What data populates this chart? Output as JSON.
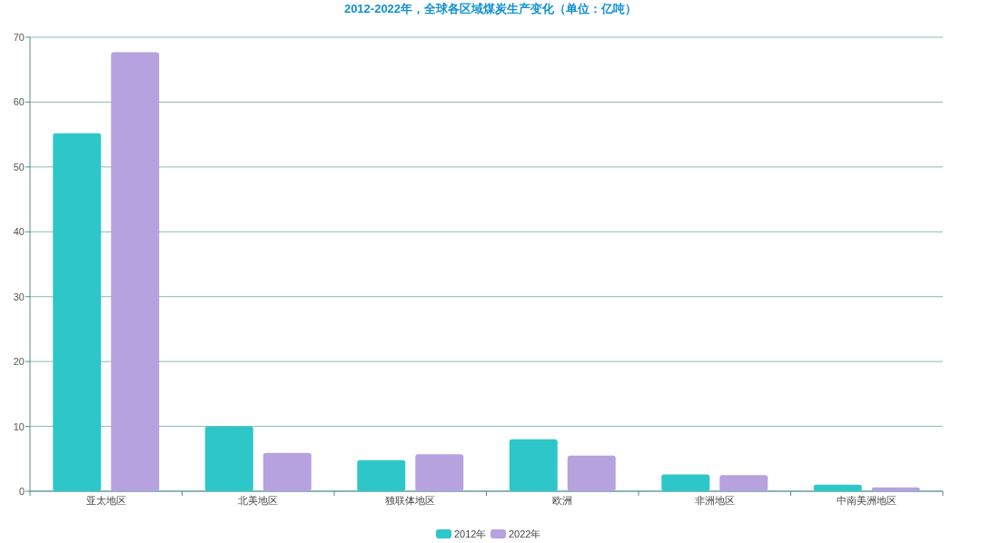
{
  "chart_data": {
    "type": "bar",
    "title": "2012-2022年，全球各区域煤炭生产变化（单位：亿吨）",
    "categories": [
      "亚太地区",
      "北美地区",
      "独联体地区",
      "欧洲",
      "非洲地区",
      "中南美洲地区"
    ],
    "series": [
      {
        "name": "2012年",
        "color": "#2ec7c9",
        "values": [
          55.2,
          10.0,
          4.8,
          8.0,
          2.6,
          1.0
        ]
      },
      {
        "name": "2022年",
        "color": "#b6a2de",
        "values": [
          67.7,
          5.9,
          5.7,
          5.5,
          2.5,
          0.6
        ]
      }
    ],
    "ylim": [
      0,
      70
    ],
    "yticks": [
      0,
      10,
      20,
      30,
      40,
      50,
      60,
      70
    ],
    "grid": "y",
    "legend": "bottom"
  }
}
